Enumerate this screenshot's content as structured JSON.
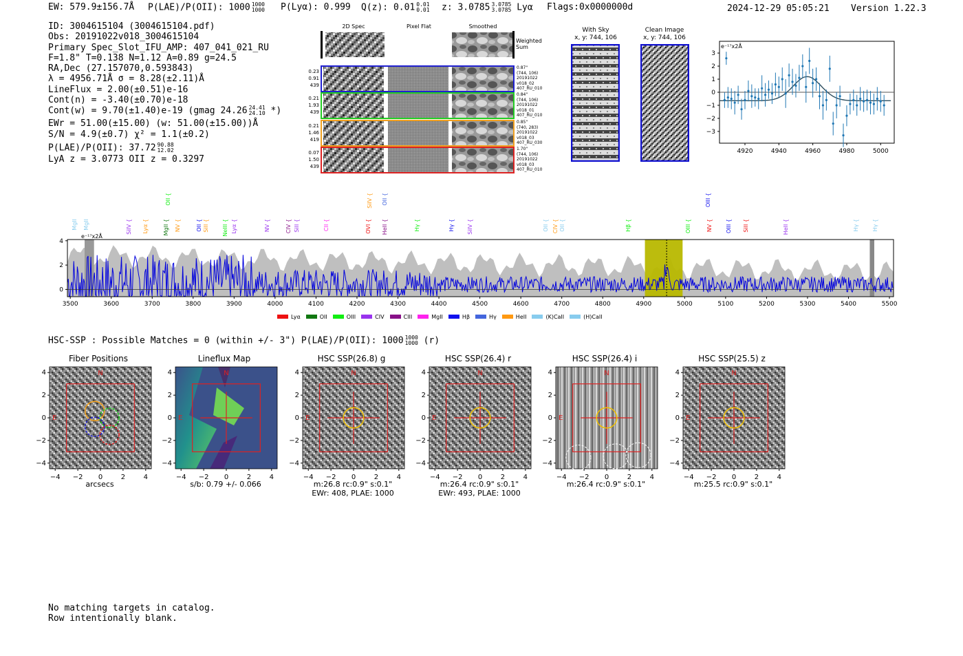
{
  "header": {
    "ew": "EW: 579.9±156.7Å",
    "plae_label": "P(LAE)/P(OII): 1000",
    "plae_hi": "1000",
    "plae_lo": "1000",
    "plya": "P(Lyα): 0.999",
    "qz_label": "Q(z): 0.01",
    "qz_hi": "0.01",
    "qz_lo": "0.01",
    "z_label": "z: 3.0785",
    "z_hi": "3.0785",
    "z_lo": "3.0785",
    "z_line": "Lyα",
    "flags": "Flags:0x0000000d",
    "timestamp": "2024-12-29 05:05:21",
    "version": "Version 1.22.3"
  },
  "info": {
    "id": "ID: 3004615104 (3004615104.pdf)",
    "obs": "Obs: 20191022v018_3004615104",
    "primary": "Primary Spec_Slot_IFU_AMP: 407_041_021_RU",
    "fit": "F=1.8\"  T=0.138  N=1.12  A=0.89  g=24.5",
    "radec": "RA,Dec (27.157070,0.593843)",
    "lambda": "λ = 4956.71Å  σ = 8.28(±2.11)Å",
    "lineflux": "LineFlux = 2.00(±0.51)e-16",
    "contn": "Cont(n) = -3.40(±0.70)e-18",
    "contw": "Cont(w) = 9.70(±1.40)e-19 (gmag 24.26",
    "contw_hi": "24.41",
    "contw_lo": "24.10",
    "contw_end": "*)",
    "ewr": "EWr = 51.00(±15.00) (w: 51.00(±15.00))Å",
    "sn": "S/N = 4.9(±0.7)  χ² = 1.1(±0.2)",
    "plae": "P(LAE)/P(OII): 37.72",
    "plae_hi": "90.88",
    "plae_lo": "12.02",
    "lya": "LyA z = 3.0773  OII z = 0.3297"
  },
  "stack": {
    "col_2d": "2D Spec",
    "col_flat": "Pixel Flat",
    "col_smooth": "Smoothed",
    "weighted": "Weighted Sum",
    "rows": [
      {
        "color": "#1f1fd0",
        "left": [
          "0.23",
          "0.91",
          "439"
        ],
        "right": [
          "0.87\"",
          "(744, 106)",
          "20191022",
          "v018_02",
          "407_RU_010"
        ]
      },
      {
        "color": "#22cc22",
        "left": [
          "0.21",
          "1.93",
          "439"
        ],
        "right": [
          "0.84\"",
          "(744, 106)",
          "20191022",
          "v018_01",
          "407_RU_010"
        ]
      },
      {
        "color": "#f0a020",
        "left": [
          "0.21",
          "1.46",
          "419"
        ],
        "right": [
          "0.85\"",
          "(740, 283)",
          "20191022",
          "v018_03",
          "407_RU_030"
        ]
      },
      {
        "color": "#dd2222",
        "left": [
          "0.07",
          "1.50",
          "439"
        ],
        "right": [
          "1.70\"",
          "(744, 106)",
          "20191022",
          "v018_03",
          "407_RU_010"
        ]
      }
    ]
  },
  "cutouts": {
    "with_sky": "With Sky",
    "with_sky_xy": "x, y: 744, 106",
    "clean": "Clean Image",
    "clean_xy": "x, y: 744, 106"
  },
  "fit_plot": {
    "unit": "e⁻¹⁷x2Å",
    "yticks": [
      "3",
      "2",
      "1",
      "0",
      "−1",
      "−2",
      "−3"
    ],
    "xticks": [
      "4920",
      "4940",
      "4960",
      "4980",
      "5000"
    ]
  },
  "spectrum": {
    "unit": "e⁻¹⁷x2Å",
    "yticks": [
      "4",
      "2",
      "0"
    ],
    "xticks": [
      "3500",
      "3600",
      "3700",
      "3800",
      "3900",
      "4000",
      "4100",
      "4200",
      "4300",
      "4400",
      "4500",
      "4600",
      "4700",
      "4800",
      "4900",
      "5000",
      "5100",
      "5200",
      "5300",
      "5400",
      "5500"
    ],
    "legend": [
      {
        "name": "Lyα",
        "color": "#ee1111"
      },
      {
        "name": "OII",
        "color": "#117711"
      },
      {
        "name": "OIII",
        "color": "#11ee11"
      },
      {
        "name": "CIV",
        "color": "#9933ee"
      },
      {
        "name": "CIII",
        "color": "#881188"
      },
      {
        "name": "MgII",
        "color": "#ff22ee"
      },
      {
        "name": "Hβ",
        "color": "#1111ee"
      },
      {
        "name": "Hγ",
        "color": "#4466dd"
      },
      {
        "name": "HeII",
        "color": "#ff9911"
      },
      {
        "name": "(K)CaII",
        "color": "#88ccee"
      },
      {
        "name": "(H)CaII",
        "color": "#88ccee"
      }
    ],
    "line_flags": [
      {
        "text": "MgII",
        "color": "#88ccee",
        "row": 1
      },
      {
        "text": "MgII",
        "color": "#88ccee",
        "row": 1
      },
      {
        "text": "SiIV {",
        "color": "#9933ee",
        "row": 1
      },
      {
        "text": "Lyα {",
        "color": "#ff9911",
        "row": 1
      },
      {
        "text": "OII {",
        "color": "#11ee11",
        "row": 0
      },
      {
        "text": "MgII {",
        "color": "#117711",
        "row": 1
      },
      {
        "text": "NV {",
        "color": "#ff9911",
        "row": 1
      },
      {
        "text": "OII {",
        "color": "#1111ee",
        "row": 1
      },
      {
        "text": "SiII {",
        "color": "#ff9911",
        "row": 1
      },
      {
        "text": "NeIII {",
        "color": "#11ee11",
        "row": 1
      },
      {
        "text": "Lyα {",
        "color": "#9933ee",
        "row": 1
      },
      {
        "text": "NV {",
        "color": "#9933ee",
        "row": 1
      },
      {
        "text": "CIV {",
        "color": "#881188",
        "row": 1
      },
      {
        "text": "SiII {",
        "color": "#9933ee",
        "row": 1
      },
      {
        "text": "CII {",
        "color": "#ff22ee",
        "row": 1
      },
      {
        "text": "SiIV {",
        "color": "#ff9911",
        "row": 0
      },
      {
        "text": "OVI {",
        "color": "#ee1111",
        "row": 1
      },
      {
        "text": "OII {",
        "color": "#4466dd",
        "row": 0
      },
      {
        "text": "HeII {",
        "color": "#881188",
        "row": 1
      },
      {
        "text": "Hγ {",
        "color": "#11ee11",
        "row": 1
      },
      {
        "text": "Hγ {",
        "color": "#1111ee",
        "row": 1
      },
      {
        "text": "SiIV {",
        "color": "#9933ee",
        "row": 1
      },
      {
        "text": "OII {",
        "color": "#88ccee",
        "row": 1
      },
      {
        "text": "CIV {",
        "color": "#ff9911",
        "row": 1
      },
      {
        "text": "OII {",
        "color": "#88ccee",
        "row": 1
      },
      {
        "text": "Hβ {",
        "color": "#11ee11",
        "row": 1
      },
      {
        "text": "OIII {",
        "color": "#11ee11",
        "row": 1
      },
      {
        "text": "OIII {",
        "color": "#1111ee",
        "row": 0
      },
      {
        "text": "NV {",
        "color": "#ee1111",
        "row": 1
      },
      {
        "text": "OIII {",
        "color": "#1111ee",
        "row": 1
      },
      {
        "text": "SiII {",
        "color": "#ee1111",
        "row": 1
      },
      {
        "text": "HeII {",
        "color": "#9933ee",
        "row": 1
      },
      {
        "text": "Hγ {",
        "color": "#88ccee",
        "row": 1
      },
      {
        "text": "Hγ {",
        "color": "#88ccee",
        "row": 1
      }
    ]
  },
  "hsc": {
    "summary": "HSC-SSP : Possible Matches = 0 (within +/- 3\")  P(LAE)/P(OII): 1000",
    "sum_hi": "1000",
    "sum_lo": "1000",
    "sum_end": "(r)",
    "panels": [
      {
        "title": "Fiber Positions",
        "caption1": "arcsecs",
        "caption2": ""
      },
      {
        "title": "Lineflux Map",
        "caption1": "s/b: 0.79 +/- 0.066",
        "caption2": ""
      },
      {
        "title": "HSC SSP(26.8) g",
        "caption1": "m:26.8 rc:0.9\"  s:0.1\"",
        "caption2": "EWr: 408, PLAE: 1000"
      },
      {
        "title": "HSC SSP(26.4) r",
        "caption1": "m:26.4 rc:0.9\"  s:0.1\"",
        "caption2": "EWr: 493, PLAE: 1000"
      },
      {
        "title": "HSC SSP(26.4) i",
        "caption1": "m:26.4 rc:0.9\"  s:0.1\"",
        "caption2": ""
      },
      {
        "title": "HSC SSP(25.5) z",
        "caption1": "m:25.5 rc:0.9\"  s:0.1\"",
        "caption2": ""
      }
    ],
    "yticks": [
      "4",
      "2",
      "0",
      "−2",
      "−4"
    ],
    "xticks": [
      "−4",
      "−2",
      "0",
      "2",
      "4"
    ],
    "north": "N",
    "east": "E"
  },
  "footer": {
    "line1": "No matching targets in catalog.",
    "line2": "Row intentionally blank."
  }
}
